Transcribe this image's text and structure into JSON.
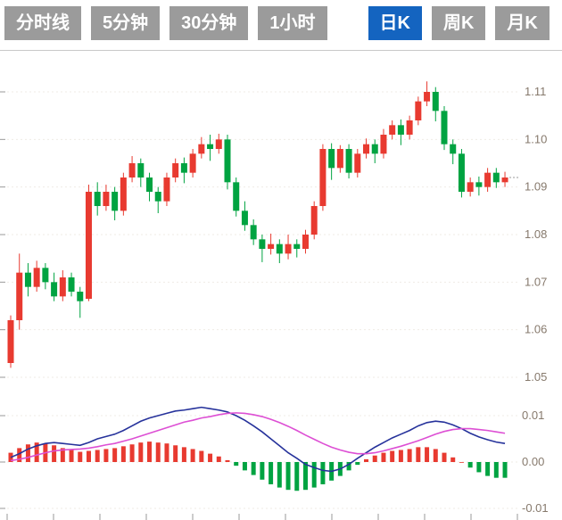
{
  "tabs": {
    "items": [
      {
        "label": "分时线",
        "active": false
      },
      {
        "label": "5分钟",
        "active": false
      },
      {
        "label": "30分钟",
        "active": false
      },
      {
        "label": "1小时",
        "active": false
      },
      {
        "label": "日K",
        "active": true
      },
      {
        "label": "周K",
        "active": false
      },
      {
        "label": "月K",
        "active": false
      }
    ]
  },
  "chart_data": {
    "type": "candlestick",
    "title": "",
    "legend": "none",
    "grid": "faint-dotted-horizontal",
    "price_axis": {
      "position": "right",
      "ticks": [
        "1.11",
        "1.10",
        "1.09",
        "1.08",
        "1.07",
        "1.06",
        "1.05"
      ],
      "min": 1.05,
      "max": 1.112
    },
    "macd_axis": {
      "position": "right",
      "ticks": [
        "0.01",
        "0.00",
        "-0.01"
      ],
      "min": -0.01,
      "max": 0.013
    },
    "candles": [
      [
        1.053,
        1.063,
        1.052,
        1.062
      ],
      [
        1.062,
        1.076,
        1.06,
        1.072
      ],
      [
        1.072,
        1.074,
        1.067,
        1.069
      ],
      [
        1.069,
        1.0745,
        1.068,
        1.073
      ],
      [
        1.073,
        1.074,
        1.0685,
        1.07
      ],
      [
        1.07,
        1.072,
        1.066,
        1.067
      ],
      [
        1.067,
        1.0725,
        1.066,
        1.071
      ],
      [
        1.071,
        1.072,
        1.067,
        1.068
      ],
      [
        1.068,
        1.069,
        1.0625,
        1.066
      ],
      [
        1.0665,
        1.0905,
        1.066,
        1.089
      ],
      [
        1.089,
        1.091,
        1.084,
        1.086
      ],
      [
        1.086,
        1.0905,
        1.085,
        1.089
      ],
      [
        1.089,
        1.09,
        1.083,
        1.085
      ],
      [
        1.085,
        1.093,
        1.084,
        1.092
      ],
      [
        1.092,
        1.0965,
        1.091,
        1.095
      ],
      [
        1.095,
        1.096,
        1.09,
        1.092
      ],
      [
        1.092,
        1.093,
        1.087,
        1.089
      ],
      [
        1.089,
        1.09,
        1.0845,
        1.087
      ],
      [
        1.087,
        1.093,
        1.086,
        1.092
      ],
      [
        1.092,
        1.096,
        1.091,
        1.095
      ],
      [
        1.095,
        1.0962,
        1.0908,
        1.093
      ],
      [
        1.093,
        1.098,
        1.092,
        1.097
      ],
      [
        1.097,
        1.1005,
        1.096,
        1.099
      ],
      [
        1.099,
        1.101,
        1.0955,
        1.098
      ],
      [
        1.098,
        1.1012,
        1.097,
        1.1
      ],
      [
        1.1,
        1.101,
        1.0895,
        1.091
      ],
      [
        1.091,
        1.092,
        1.0838,
        1.085
      ],
      [
        1.085,
        1.087,
        1.0808,
        1.082
      ],
      [
        1.082,
        1.0832,
        1.0778,
        1.079
      ],
      [
        1.079,
        1.08,
        1.0742,
        1.077
      ],
      [
        1.077,
        1.0802,
        1.0758,
        1.078
      ],
      [
        1.078,
        1.079,
        1.074,
        1.076
      ],
      [
        1.076,
        1.08,
        1.0748,
        1.078
      ],
      [
        1.078,
        1.079,
        1.0752,
        1.077
      ],
      [
        1.077,
        1.081,
        1.076,
        1.08
      ],
      [
        1.08,
        1.087,
        1.079,
        1.086
      ],
      [
        1.086,
        1.099,
        1.085,
        1.098
      ],
      [
        1.098,
        1.0992,
        1.0915,
        1.094
      ],
      [
        1.094,
        1.0988,
        1.093,
        1.098
      ],
      [
        1.098,
        1.099,
        1.0918,
        1.093
      ],
      [
        1.093,
        1.098,
        1.092,
        1.097
      ],
      [
        1.097,
        1.1002,
        1.096,
        1.099
      ],
      [
        1.099,
        1.1,
        1.095,
        1.097
      ],
      [
        1.097,
        1.1022,
        1.096,
        1.101
      ],
      [
        1.101,
        1.104,
        1.1,
        1.103
      ],
      [
        1.103,
        1.1042,
        1.0988,
        1.101
      ],
      [
        1.101,
        1.105,
        1.1,
        1.104
      ],
      [
        1.104,
        1.109,
        1.103,
        1.108
      ],
      [
        1.108,
        1.1122,
        1.107,
        1.11
      ],
      [
        1.11,
        1.111,
        1.1038,
        1.106
      ],
      [
        1.106,
        1.107,
        1.0978,
        1.099
      ],
      [
        1.099,
        1.1,
        1.0948,
        1.097
      ],
      [
        1.097,
        1.098,
        1.0878,
        1.089
      ],
      [
        1.089,
        1.092,
        1.088,
        1.091
      ],
      [
        1.091,
        1.0922,
        1.0882,
        1.09
      ],
      [
        1.09,
        1.094,
        1.089,
        1.093
      ],
      [
        1.093,
        1.094,
        1.0898,
        1.091
      ],
      [
        1.091,
        1.0932,
        1.09,
        1.092
      ]
    ],
    "macd": {
      "dif": [
        0.001,
        0.0018,
        0.0028,
        0.0035,
        0.004,
        0.0042,
        0.004,
        0.0038,
        0.0036,
        0.0042,
        0.005,
        0.0055,
        0.006,
        0.0068,
        0.0078,
        0.0088,
        0.0095,
        0.01,
        0.0105,
        0.011,
        0.0112,
        0.0115,
        0.0118,
        0.0115,
        0.0112,
        0.0108,
        0.01,
        0.009,
        0.0078,
        0.0065,
        0.005,
        0.0035,
        0.002,
        0.0008,
        -0.0005,
        -0.0012,
        -0.0018,
        -0.002,
        -0.0015,
        -0.0005,
        0.0008,
        0.002,
        0.0032,
        0.0042,
        0.0052,
        0.006,
        0.0068,
        0.0078,
        0.0085,
        0.0088,
        0.0086,
        0.008,
        0.0072,
        0.0062,
        0.0054,
        0.0048,
        0.0043,
        0.004
      ],
      "dea": [
        0.0003,
        0.0006,
        0.001,
        0.0015,
        0.002,
        0.0024,
        0.0026,
        0.0027,
        0.0028,
        0.003,
        0.0033,
        0.0037,
        0.004,
        0.0045,
        0.005,
        0.0056,
        0.0062,
        0.0068,
        0.0074,
        0.008,
        0.0086,
        0.009,
        0.0095,
        0.0098,
        0.0102,
        0.0105,
        0.0106,
        0.0105,
        0.0102,
        0.0098,
        0.0092,
        0.0085,
        0.0077,
        0.0068,
        0.0058,
        0.0049,
        0.004,
        0.0032,
        0.0026,
        0.0021,
        0.0018,
        0.0018,
        0.002,
        0.0024,
        0.0029,
        0.0034,
        0.004,
        0.0046,
        0.0053,
        0.006,
        0.0066,
        0.007,
        0.0072,
        0.0072,
        0.007,
        0.0068,
        0.0065,
        0.0062
      ],
      "histogram": [
        0.002,
        0.003,
        0.0038,
        0.0042,
        0.004,
        0.0036,
        0.003,
        0.0026,
        0.0022,
        0.0024,
        0.0026,
        0.0028,
        0.003,
        0.0034,
        0.0038,
        0.0042,
        0.0044,
        0.0042,
        0.004,
        0.0036,
        0.0032,
        0.0028,
        0.0024,
        0.0018,
        0.0012,
        0.0004,
        -0.0008,
        -0.0018,
        -0.0028,
        -0.0038,
        -0.0048,
        -0.0055,
        -0.006,
        -0.0062,
        -0.006,
        -0.0055,
        -0.0048,
        -0.004,
        -0.003,
        -0.0018,
        -0.0006,
        0.0006,
        0.0014,
        0.002,
        0.0024,
        0.0026,
        0.0028,
        0.0032,
        0.0032,
        0.0028,
        0.002,
        0.001,
        0.0,
        -0.0012,
        -0.0022,
        -0.003,
        -0.0034,
        -0.0034
      ]
    },
    "colors": {
      "up": "#e83a30",
      "down": "#00a341",
      "dif": "#26329b",
      "dea": "#dd4fd4",
      "axis_text": "#86796c",
      "tab_bg": "#9b9b9b",
      "tab_active": "#1464c0",
      "tick": "#9a9a9a",
      "separator": "#c9c9c9",
      "gridline": "#efebe6"
    }
  }
}
